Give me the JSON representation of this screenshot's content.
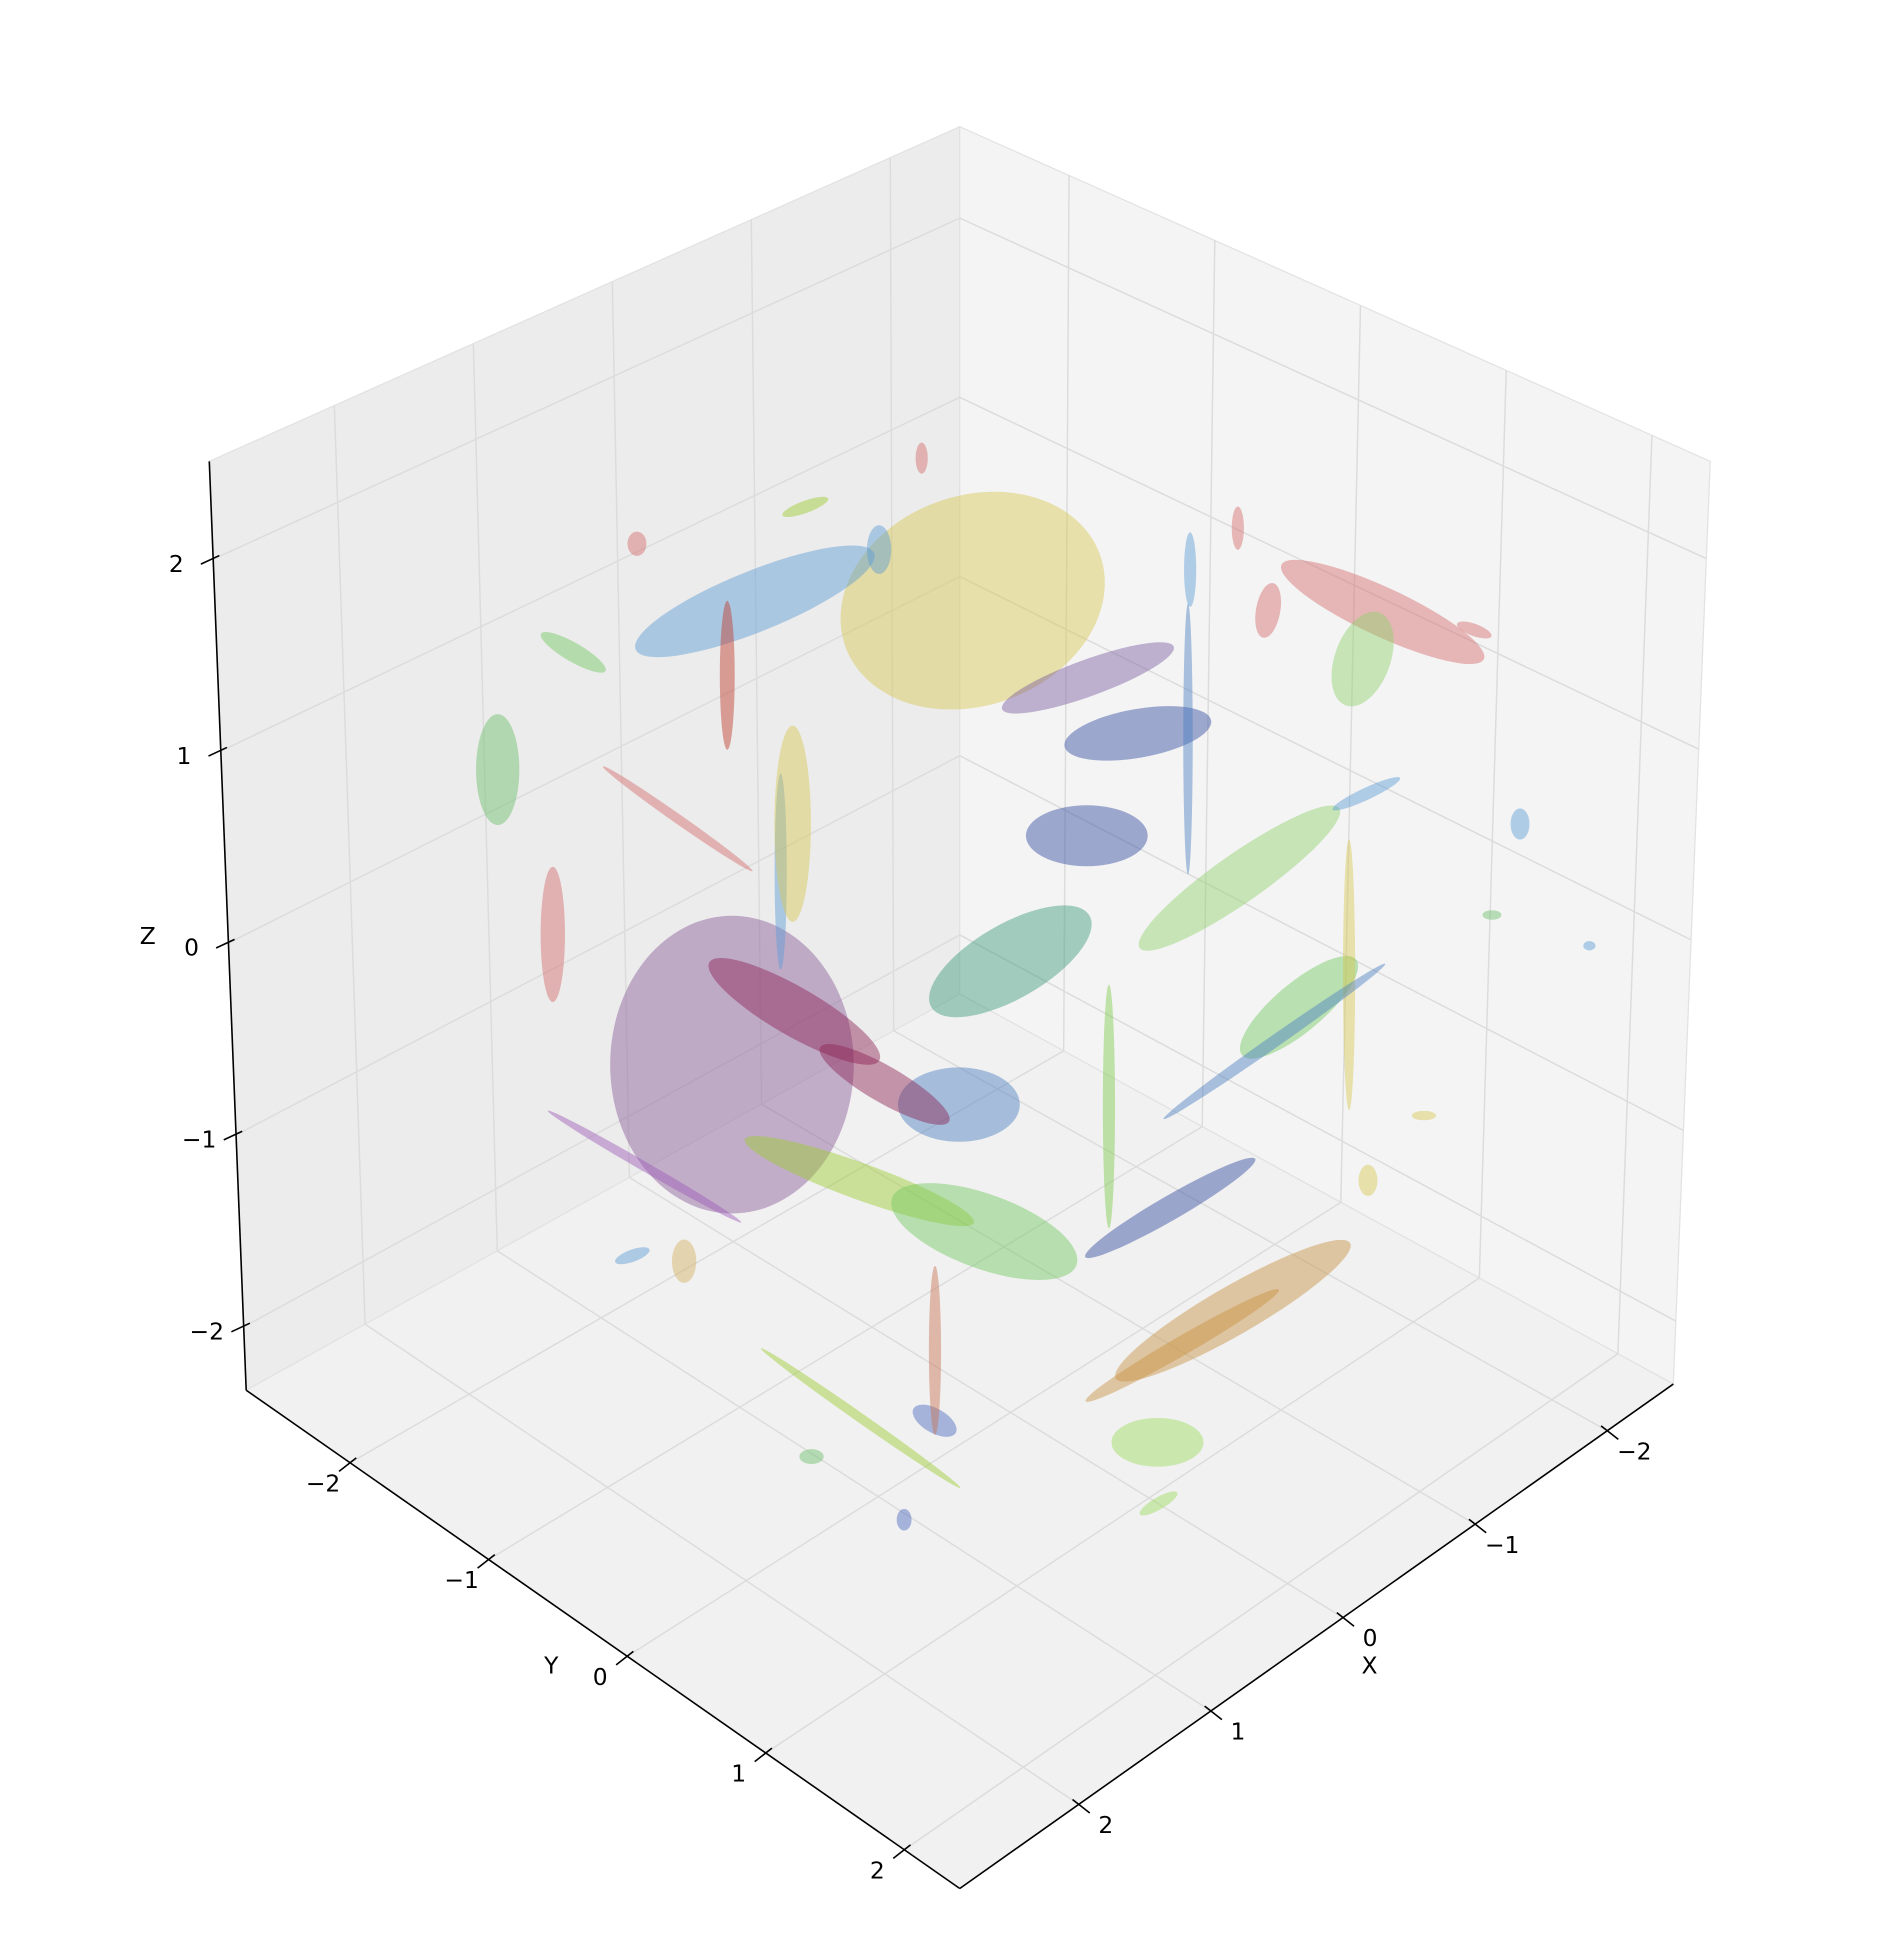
{
  "chart_data": {
    "type": "ellipse3d",
    "xlabel": "X",
    "ylabel": "Y",
    "zlabel": "Z",
    "xlim": [
      -2.5,
      2.9
    ],
    "ylim": [
      -2.75,
      2.4
    ],
    "zlim": [
      -2.33,
      2.51
    ],
    "xticks": [
      {
        "value": -2,
        "label": "−2"
      },
      {
        "value": -1,
        "label": "−1"
      },
      0,
      1,
      2
    ],
    "yticks": [
      {
        "value": -2,
        "label": "−2"
      },
      {
        "value": -1,
        "label": "−1"
      },
      0,
      1,
      2
    ],
    "zticks": [
      {
        "value": -2,
        "label": "−2"
      },
      {
        "value": -1,
        "label": "−1"
      },
      0,
      1,
      2
    ],
    "grid": true,
    "alpha": 0.45,
    "ellipses": {
      "x": [
        0.29,
        2.06,
        0.82,
        -1.64,
        2.69,
        -0.06,
        -1.5,
        2.32,
        -0.08,
        -0.39,
        -1.62,
        -0.62,
        1.6,
        -0.92,
        -0.55,
        0.39,
        -1.08,
        1.13,
        2.43,
        2.81,
        1.85,
        1.5,
        -0.8,
        -0.57,
        -1.29,
        0.63,
        -1.24,
        -0.96,
        -0.55,
        1.62,
        2.71,
        -0.73,
        -1.45,
        2.06,
        1.69,
        -1.29,
        -0.62,
        1.13,
        -0.24,
        -0.9,
        0.2,
        -0.55,
        2.43,
        2.13,
        -2.17,
        -1.43,
        0.99,
        0.94,
        0.01,
        -1.55,
        0.57,
        1.6,
        -1.2,
        0.45
      ],
      "y": [
        0,
        0,
        -1,
        1,
        -1,
        1,
        1,
        -1,
        -1,
        -1,
        2,
        1,
        0,
        0,
        0,
        0,
        1,
        0,
        0,
        0,
        1,
        0,
        1,
        1,
        0,
        -2,
        2,
        2,
        2,
        1,
        0,
        0,
        1,
        0,
        0,
        0,
        1,
        0,
        1,
        1,
        0,
        0,
        0,
        -1,
        2,
        2,
        2,
        0,
        0,
        1,
        0,
        0,
        0,
        -1
      ],
      "z": [
        2.02,
        0.32,
        1.81,
        1.58,
        1.62,
        -2.07,
        1.39,
        0.64,
        1.75,
        2.12,
        0.85,
        -1.64,
        0.41,
        0.85,
        0.46,
        -0.56,
        -0.26,
        -0.65,
        -0.53,
        -0.35,
        -1.62,
        -1.91,
        1.93,
        2.45,
        1.57,
        1.63,
        2.02,
        -0.37,
        -0.52,
        -1.22,
        0.06,
        -1.04,
        -0.25,
        2.3,
        1.16,
        0.67,
        0.61,
        -1.87,
        -1.65,
        -0.36,
        -1.3,
        1.29,
        1.71,
        2.02,
        -0.03,
        0.46,
        -1.47,
        -0.23,
        0.03,
        0.66,
        -1.76,
        1.37,
        -1.78,
        2.17
      ],
      "width": [
        2.0,
        1.8,
        1.9,
        1.65,
        0.32,
        0.68,
        0.41,
        0.18,
        0.18,
        0.09,
        0.14,
        2.0,
        1.45,
        1.1,
        0.9,
        0.9,
        1.1,
        1.8,
        0.18,
        0.27,
        0.11,
        0.18,
        0.18,
        0.09,
        0.09,
        0.14,
        0.27,
        0.18,
        0.14,
        0.36,
        1.65,
        0.09,
        0.09,
        0.11,
        0.09,
        0.07,
        1.8,
        1.8,
        1.65,
        2.0,
        1.45,
        1.35,
        1.35,
        0.55,
        0.09,
        0.14,
        0.32,
        1.1,
        1.35,
        0.55,
        0.09,
        0.27,
        1.45,
        0.36
      ],
      "height": [
        1.55,
        2.2,
        0.45,
        0.36,
        0.82,
        0.36,
        0.73,
        1.0,
        0.36,
        0.23,
        0.23,
        0.36,
        0.36,
        0.36,
        0.45,
        0.55,
        0.36,
        0.27,
        0.32,
        0.09,
        0.16,
        0.11,
        0.41,
        0.32,
        0.55,
        0.18,
        0.09,
        0.07,
        0.23,
        0.18,
        0.07,
        1.8,
        2.0,
        1.1,
        1.45,
        2.0,
        0.36,
        0.07,
        0.14,
        0.09,
        0.55,
        0.27,
        0.07,
        0.14,
        0.07,
        0.07,
        0.09,
        0.27,
        0.55,
        0.09,
        1.25,
        1.45,
        0.18,
        0.09
      ],
      "angle": [
        20,
        0,
        22,
        -25,
        0,
        0,
        -20,
        0,
        0,
        0,
        0,
        30,
        -30,
        10,
        0,
        0,
        40,
        -20,
        0,
        20,
        0,
        0,
        -10,
        0,
        0,
        0,
        -20,
        0,
        0,
        -30,
        -30,
        0,
        0,
        0,
        0,
        0,
        35,
        -35,
        30,
        35,
        -20,
        20,
        -35,
        -30,
        0,
        0,
        30,
        -30,
        30,
        25,
        0,
        0,
        30,
        20
      ],
      "color": [
        "#d8c850",
        "#8a5a9a",
        "#5b9bd5",
        "#d46a6a",
        "#6abf69",
        "#9bdc5a",
        "#8fd16a",
        "#d46a6a",
        "#5b9bd5",
        "#d46a6a",
        "#5b9bd5",
        "#c89040",
        "#8b2252",
        "#304aa0",
        "#304aa0",
        "#4a7ec0",
        "#70c860",
        "#9ccc2c",
        "#d4b060",
        "#5b9bd5",
        "#4a68c0",
        "#6abf69",
        "#d46a6a",
        "#d46a6a",
        "#5b9bd5",
        "#d46a6a",
        "#d46a6a",
        "#d8c850",
        "#d8c850",
        "#4a68c0",
        "#9b59b6",
        "#7cc94a",
        "#d8c850",
        "#c0392b",
        "#5b9bd5",
        "#4a7ec0",
        "#8fd16a",
        "#9ccc2c",
        "#c89040",
        "#4a7ec0",
        "#70c860",
        "#7a5aa0",
        "#d46a6a",
        "#70c860",
        "#5b9bd5",
        "#6abf69",
        "#9bdc5a",
        "#8b2252",
        "#3a9a7a",
        "#5b9bd5",
        "#c87050",
        "#d8c850",
        "#304aa0",
        "#9ccc2c"
      ]
    }
  }
}
